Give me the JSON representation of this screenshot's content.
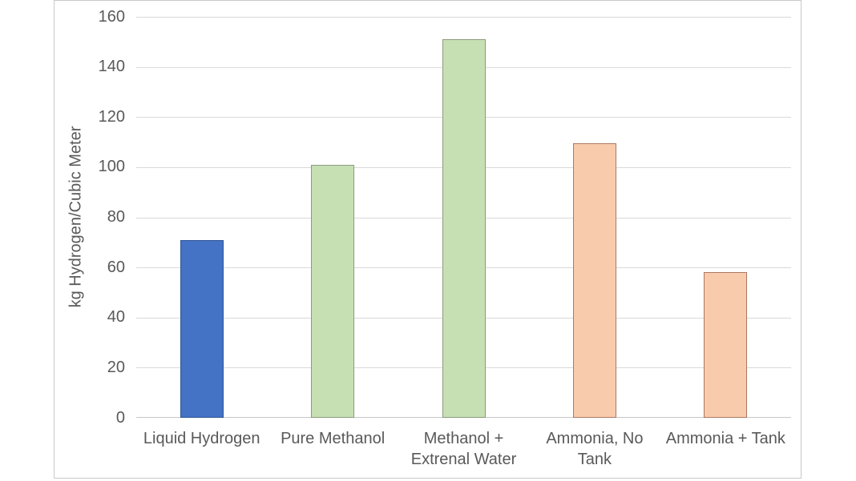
{
  "chart_data": {
    "type": "bar",
    "title": "",
    "xlabel": "",
    "ylabel": "kg Hydrogen/Cubic Meter",
    "categories": [
      "Liquid Hydrogen",
      "Pure Methanol",
      "Methanol +\nExtrenal Water",
      "Ammonia, No\nTank",
      "Ammonia + Tank"
    ],
    "values": [
      71,
      101,
      151,
      109.5,
      58
    ],
    "ylim": [
      0,
      160
    ],
    "yticks": [
      0,
      20,
      40,
      60,
      80,
      100,
      120,
      140,
      160
    ],
    "grid": "horizontal",
    "legend": "none",
    "bar_fill_colors": [
      "#4472c4",
      "#c6e0b4",
      "#c6e0b4",
      "#f8cbad",
      "#f8cbad"
    ],
    "bar_border_colors": [
      "#2f5597",
      "#8a9b7c",
      "#8a9b7c",
      "#ad7861",
      "#ad7861"
    ]
  },
  "colors": {
    "gridline": "#d9d9d9",
    "axis_line": "#c6c6c6",
    "text": "#595959",
    "chart_border": "#c9c9c9",
    "background": "#ffffff"
  }
}
